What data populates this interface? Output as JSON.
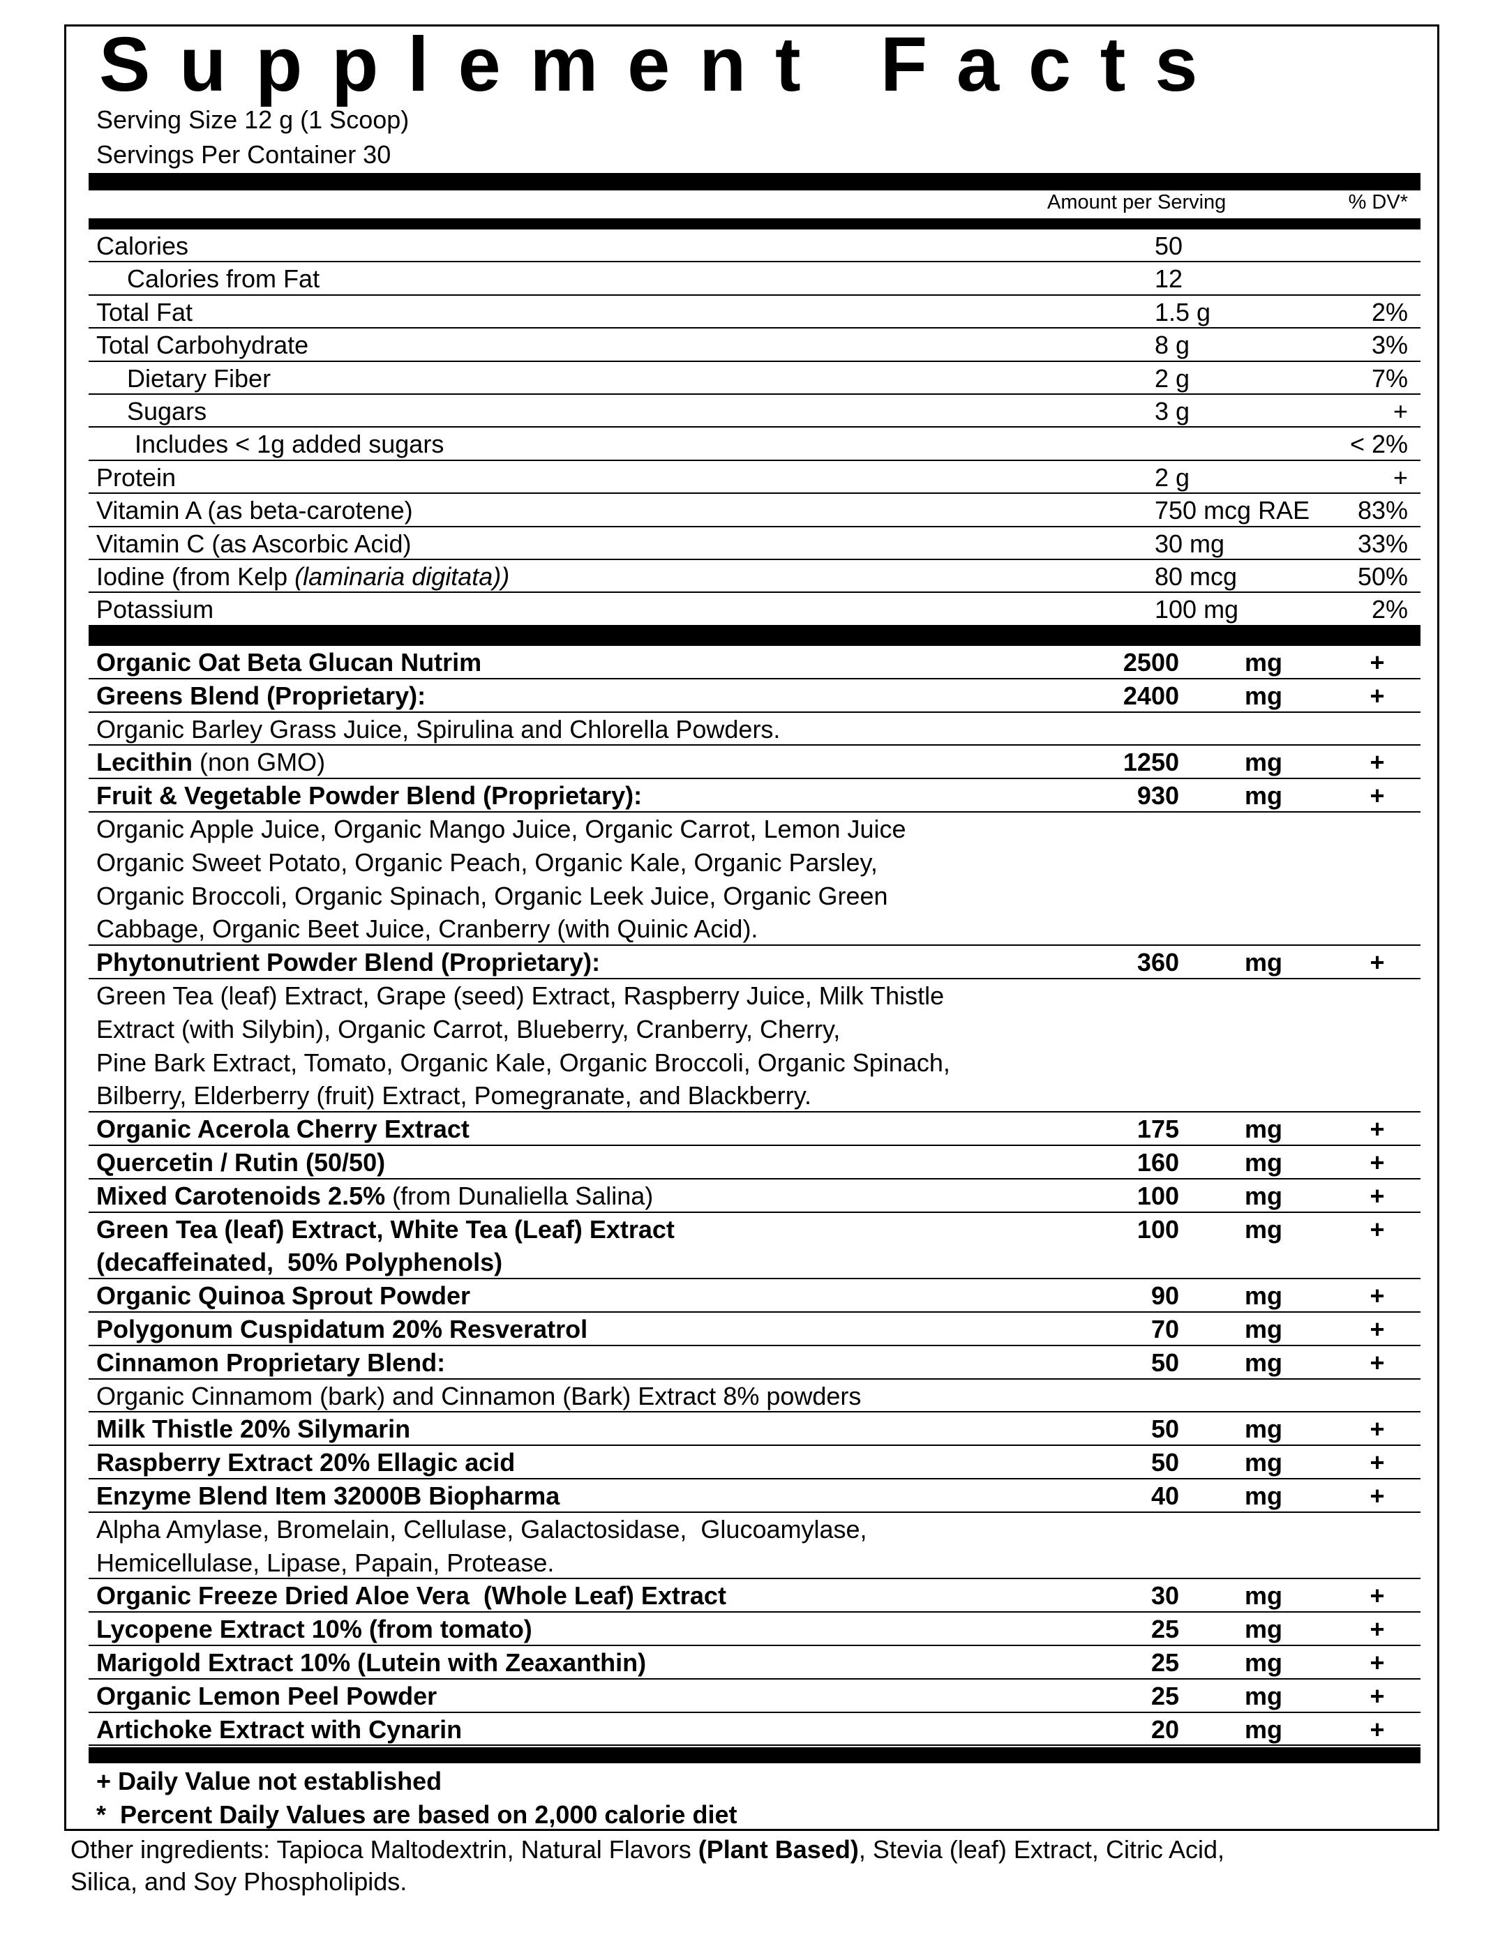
{
  "title": "Supplement Facts",
  "serving_size": "Serving Size 12 g (1 Scoop)",
  "servings_per_container": "Servings Per Container 30",
  "column_headers": {
    "amount": "Amount per Serving",
    "dv": "% DV*"
  },
  "nutrients": [
    {
      "name": "Calories",
      "amount": "50",
      "indent": 0
    },
    {
      "name": "Calories from Fat",
      "amount": "12",
      "indent": 1
    },
    {
      "name": "Total Fat",
      "amount": "1.5 g",
      "dv": "2%",
      "indent": 0
    },
    {
      "name": "Total Carbohydrate",
      "amount": "8 g",
      "dv": "3%",
      "indent": 0
    },
    {
      "name": "Dietary Fiber",
      "amount": "2 g",
      "dv": "7%",
      "indent": 1
    },
    {
      "name": "Sugars",
      "amount": "3 g",
      "dv": "+",
      "indent": 1
    },
    {
      "name": "Includes < 1g added sugars",
      "dv": "< 2%",
      "indent": 2
    },
    {
      "name": "Protein",
      "amount": "2 g",
      "dv": "+",
      "indent": 0
    },
    {
      "name": "Vitamin A (as beta-carotene)",
      "amount": "750 mcg RAE",
      "dv": "83%",
      "indent": 0
    },
    {
      "name": "Vitamin C (as Ascorbic Acid)",
      "amount": "30 mg",
      "dv": "33%",
      "indent": 0
    },
    {
      "name": "Iodine (from Kelp",
      "name_italic": "(laminaria digitata))",
      "amount": "80 mcg",
      "dv": "50%",
      "indent": 0
    },
    {
      "name": "Potassium",
      "amount": "100 mg",
      "dv": "2%",
      "indent": 0
    }
  ],
  "ingredients": [
    {
      "name": "Organic Oat Beta Glucan Nutrim",
      "amount": "2500",
      "unit": "mg",
      "dv": "+"
    },
    {
      "name": "Greens Blend (Proprietary):",
      "amount": "2400",
      "unit": "mg",
      "dv": "+"
    },
    {
      "description": [
        "Organic Barley Grass Juice, Spirulina and Chlorella Powders."
      ]
    },
    {
      "name": "Lecithin",
      "name_note": "(non GMO)",
      "amount": "1250",
      "unit": "mg",
      "dv": "+"
    },
    {
      "name": "Fruit & Vegetable Powder Blend (Proprietary):",
      "amount": "930",
      "unit": "mg",
      "dv": "+"
    },
    {
      "description": [
        "Organic Apple Juice, Organic Mango Juice, Organic Carrot, Lemon Juice",
        "Organic Sweet Potato, Organic Peach, Organic Kale, Organic Parsley,",
        "Organic Broccoli, Organic Spinach, Organic Leek Juice, Organic Green",
        "Cabbage, Organic Beet Juice, Cranberry (with Quinic Acid)."
      ]
    },
    {
      "name": "Phytonutrient Powder Blend (Proprietary):",
      "amount": "360",
      "unit": "mg",
      "dv": "+"
    },
    {
      "description": [
        "Green Tea (leaf) Extract, Grape (seed) Extract, Raspberry Juice, Milk Thistle",
        "Extract (with Silybin), Organic Carrot, Blueberry, Cranberry, Cherry,",
        "Pine Bark Extract, Tomato, Organic Kale, Organic Broccoli, Organic Spinach,",
        "Bilberry, Elderberry (fruit) Extract, Pomegranate, and Blackberry."
      ]
    },
    {
      "name": "Organic Acerola Cherry Extract",
      "amount": "175",
      "unit": "mg",
      "dv": "+"
    },
    {
      "name": "Quercetin / Rutin (50/50)",
      "amount": "160",
      "unit": "mg",
      "dv": "+"
    },
    {
      "name": "Mixed Carotenoids 2.5%",
      "name_note": "(from Dunaliella Salina)",
      "amount": "100",
      "unit": "mg",
      "dv": "+"
    },
    {
      "name": [
        "Green Tea (leaf) Extract, White Tea (Leaf) Extract",
        "(decaffeinated,  50% Polyphenols)"
      ],
      "amount": "100",
      "unit": "mg",
      "dv": "+"
    },
    {
      "name": "Organic Quinoa Sprout Powder",
      "amount": "90",
      "unit": "mg",
      "dv": "+"
    },
    {
      "name": "Polygonum Cuspidatum 20% Resveratrol",
      "amount": "70",
      "unit": "mg",
      "dv": "+"
    },
    {
      "name": "Cinnamon Proprietary Blend:",
      "amount": "50",
      "unit": "mg",
      "dv": "+"
    },
    {
      "description": [
        "Organic Cinnamom (bark) and Cinnamon (Bark) Extract 8% powders"
      ]
    },
    {
      "name": "Milk Thistle 20% Silymarin",
      "amount": "50",
      "unit": "mg",
      "dv": "+"
    },
    {
      "name": "Raspberry Extract 20% Ellagic acid",
      "amount": "50",
      "unit": "mg",
      "dv": "+"
    },
    {
      "name": "Enzyme Blend Item 32000B Biopharma",
      "amount": "40",
      "unit": "mg",
      "dv": "+"
    },
    {
      "description": [
        "Alpha Amylase, Bromelain, Cellulase, Galactosidase,  Glucoamylase,",
        "Hemicellulase, Lipase, Papain, Protease."
      ]
    },
    {
      "name": "Organic Freeze Dried Aloe Vera  (Whole Leaf) Extract",
      "amount": "30",
      "unit": "mg",
      "dv": "+"
    },
    {
      "name": "Lycopene Extract 10% (from tomato)",
      "amount": "25",
      "unit": "mg",
      "dv": "+"
    },
    {
      "name": "Marigold Extract 10% (Lutein with Zeaxanthin)",
      "amount": "25",
      "unit": "mg",
      "dv": "+"
    },
    {
      "name": "Organic Lemon Peel Powder",
      "amount": "25",
      "unit": "mg",
      "dv": "+"
    },
    {
      "name": "Artichoke Extract with Cynarin",
      "amount": "20",
      "unit": "mg",
      "dv": "+"
    }
  ],
  "footnotes": [
    "+ Daily Value not established",
    "*  Percent Daily Values are based on 2,000 calorie diet"
  ],
  "other_ingredients": {
    "text_before": "Other ingredients:  Tapioca Maltodextrin, Natural Flavors",
    "text_bold": "(Plant Based)",
    "text_after": ", Stevia (leaf) Extract, Citric Acid, Silica, and Soy Phospholipids."
  }
}
